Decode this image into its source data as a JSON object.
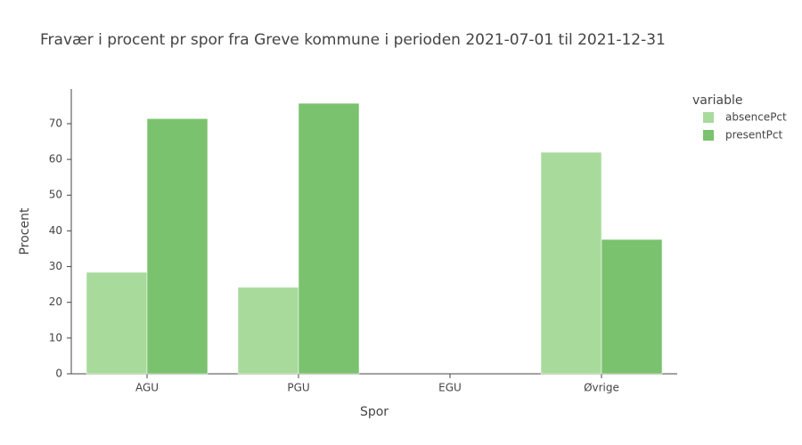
{
  "chart_data": {
    "type": "bar",
    "title": "Fravær i procent pr spor fra Greve kommune i perioden 2021-07-01 til 2021-12-31",
    "x_label": "Spor",
    "y_label": "Procent",
    "legend_title": "variable",
    "categories": [
      "AGU",
      "PGU",
      "EGU",
      "Øvrige"
    ],
    "series": [
      {
        "name": "absencePct",
        "color": "#a8da9c",
        "values": [
          28.4,
          24.2,
          null,
          62.0
        ]
      },
      {
        "name": "presentPct",
        "color": "#7bc26f",
        "values": [
          71.4,
          75.7,
          null,
          37.6
        ]
      }
    ],
    "ylim": [
      0,
      79.7
    ],
    "yticks": [
      0,
      10,
      20,
      30,
      40,
      50,
      60,
      70
    ],
    "grid": false,
    "legend": "right"
  }
}
